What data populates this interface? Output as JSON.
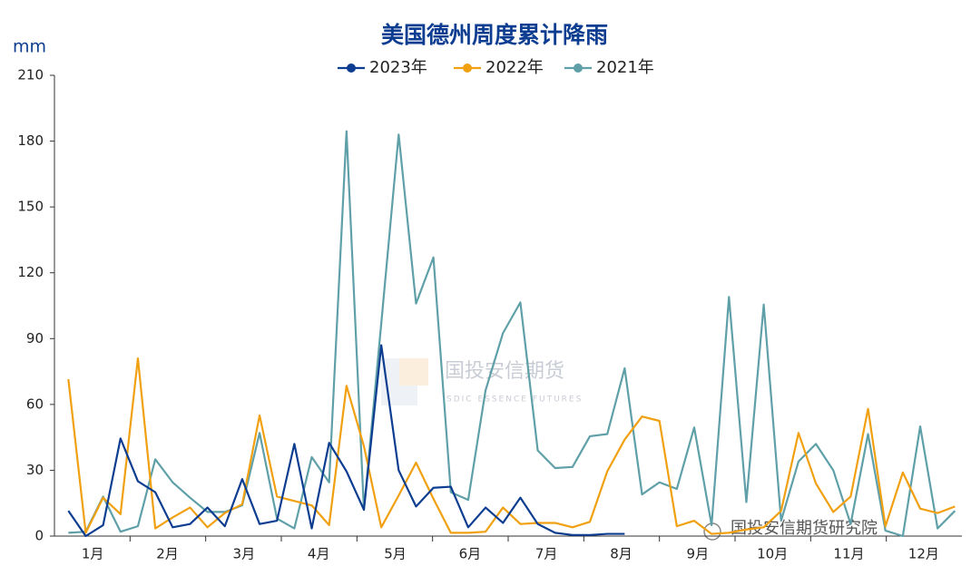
{
  "chart_data": {
    "type": "line",
    "title": "美国德州周度累计降雨",
    "y_label": "mm",
    "annotations": [
      "国投安信期货",
      "SDIC ESSENCE FUTURES",
      "国投安信期货研究院"
    ],
    "x": [
      1,
      2,
      3,
      4,
      5,
      6,
      7,
      8,
      9,
      10,
      11,
      12,
      13,
      14,
      15,
      16,
      17,
      18,
      19,
      20,
      21,
      22,
      23,
      24,
      25,
      26,
      27,
      28,
      29,
      30,
      31,
      32,
      33,
      34,
      35,
      36,
      37,
      38,
      39,
      40,
      41,
      42,
      43,
      44,
      45,
      46,
      47,
      48,
      49,
      50,
      51,
      52
    ],
    "xlim": [
      0.2,
      52.4
    ],
    "xticks": [
      {
        "value": 2.4,
        "label": "1月"
      },
      {
        "value": 6.7,
        "label": "2月"
      },
      {
        "value": 11.1,
        "label": "3月"
      },
      {
        "value": 15.4,
        "label": "4月"
      },
      {
        "value": 19.8,
        "label": "5月"
      },
      {
        "value": 24.1,
        "label": "6月"
      },
      {
        "value": 28.5,
        "label": "7月"
      },
      {
        "value": 32.8,
        "label": "8月"
      },
      {
        "value": 37.2,
        "label": "9月"
      },
      {
        "value": 41.5,
        "label": "10月"
      },
      {
        "value": 45.9,
        "label": "11月"
      },
      {
        "value": 50.2,
        "label": "12月"
      }
    ],
    "ylim": [
      0,
      210
    ],
    "yticks": [
      0,
      30,
      60,
      90,
      120,
      150,
      180,
      210
    ],
    "grid": false,
    "series": [
      {
        "name": "2023年",
        "color": "#0d3d91",
        "values": [
          11.5,
          0,
          5,
          44.5,
          25,
          20,
          4,
          5.5,
          13,
          4.5,
          26,
          5.5,
          7,
          42,
          3.5,
          42.5,
          29.5,
          12,
          87,
          30,
          13.5,
          22,
          22.5,
          4,
          13,
          6,
          17.5,
          5.5,
          1.5,
          0.5,
          0.5,
          1,
          1,
          null,
          null,
          null,
          null,
          null,
          null,
          null,
          null,
          null,
          null,
          null,
          null,
          null,
          null,
          null,
          null,
          null,
          null,
          null
        ]
      },
      {
        "name": "2022年",
        "color": "#f0a010",
        "values": [
          71.5,
          1.5,
          17.5,
          10,
          81,
          3.5,
          8.5,
          13,
          4,
          10.5,
          14.5,
          55,
          18,
          16,
          14,
          5,
          68.5,
          41,
          4,
          18.5,
          33.5,
          17,
          1.5,
          1.5,
          2,
          13,
          5.5,
          6,
          6,
          4,
          6.5,
          29.5,
          44,
          54.5,
          52.5,
          4.5,
          7,
          1,
          1.5,
          3,
          4,
          11.5,
          47,
          24,
          11,
          18,
          58,
          4.5,
          29,
          12.5,
          10.5,
          13.5
        ]
      },
      {
        "name": "2021年",
        "color": "#5fa0a8",
        "values": [
          1.5,
          2,
          18,
          2,
          4.5,
          35,
          24.5,
          17.5,
          11,
          11,
          14,
          47,
          8,
          3.5,
          36,
          24.5,
          184.5,
          12,
          97,
          183,
          106,
          127,
          20,
          16.5,
          66.5,
          92.5,
          106.5,
          39,
          31,
          31.5,
          45.5,
          46.5,
          76.5,
          19,
          24.5,
          21.5,
          49.5,
          5,
          109,
          15.5,
          105.5,
          7,
          34,
          42,
          30,
          5.5,
          46.5,
          2.5,
          0,
          50,
          3.5,
          11.5
        ]
      }
    ]
  }
}
